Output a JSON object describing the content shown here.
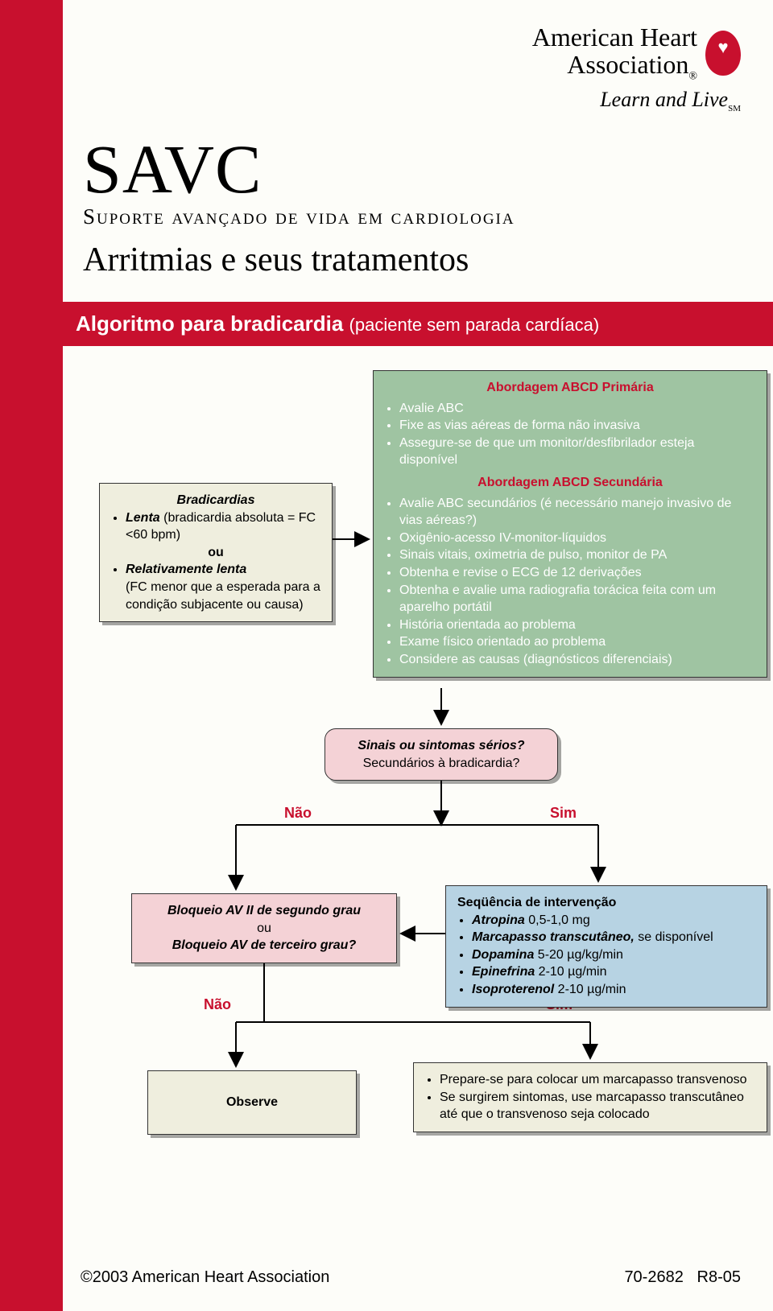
{
  "org": {
    "name_line1": "American Heart",
    "name_line2": "Association",
    "reg": "®",
    "tagline": "Learn and Live",
    "sm": "SM"
  },
  "header": {
    "title": "SAVC",
    "subtitle": "Suporte avançado de vida em cardiologia",
    "section": "Arritmias e seus tratamentos"
  },
  "algo_bar": {
    "main": "Algoritmo para bradicardia",
    "sub": "(paciente sem parada cardíaca)"
  },
  "colors": {
    "brand_red": "#c8102e",
    "bg_cream": "#efeede",
    "bg_green": "#9fc4a2",
    "bg_pink": "#f4d2d6",
    "bg_blue": "#b7d3e3",
    "page_bg": "#fdfdf9"
  },
  "flow": {
    "brad": {
      "title": "Bradicardias",
      "item1_b": "Lenta",
      "item1_rest": " (bradicardia absoluta = FC <60 bpm)",
      "ou": "ou",
      "item2_b": "Relativamente lenta",
      "item2_rest": "(FC menor que a esperada para a condição subjacente ou causa)"
    },
    "abcd": {
      "hdr1": "Abordagem ABCD Primária",
      "p_items": [
        "Avalie ABC",
        "Fixe as vias aéreas de forma não invasiva",
        "Assegure-se de que um monitor/desfibrilador esteja disponível"
      ],
      "hdr2": "Abordagem ABCD Secundária",
      "s_items": [
        "Avalie ABC secundários (é necessário manejo invasivo de vias aéreas?)",
        "Oxigênio-acesso IV-monitor-líquidos",
        "Sinais vitais, oximetria de pulso, monitor de PA",
        "Obtenha e revise o ECG de 12 derivações",
        "Obtenha e avalie uma radiografia torácica feita com um aparelho portátil",
        "História orientada ao problema",
        "Exame físico orientado ao problema",
        "Considere as causas (diagnósticos diferenciais)"
      ]
    },
    "question": {
      "l1": "Sinais ou sintomas sérios?",
      "l2": "Secundários à bradicardia?"
    },
    "labels": {
      "nao": "Não",
      "sim": "Sim"
    },
    "blockav": {
      "l1": "Bloqueio AV II de segundo grau",
      "ou": "ou",
      "l2": "Bloqueio AV de terceiro grau?"
    },
    "interv": {
      "title": "Seqüência de intervenção",
      "items": [
        {
          "b": "Atropina",
          "rest": " 0,5-1,0 mg"
        },
        {
          "b": "Marcapasso transcutâneo,",
          "rest": " se disponível"
        },
        {
          "b": "Dopamina",
          "rest": " 5-20 µg/kg/min"
        },
        {
          "b": "Epinefrina",
          "rest": " 2-10 µg/min"
        },
        {
          "b": "Isoproterenol",
          "rest": " 2-10 µg/min"
        }
      ]
    },
    "observe": "Observe",
    "prepare": {
      "items": [
        "Prepare-se para colocar um marcapasso transvenoso",
        "Se surgirem sintomas, use marcapasso transcutâneo até que o transvenoso seja colocado"
      ]
    }
  },
  "footer": {
    "copyright": "©2003 American Heart Association",
    "code1": "70-2682",
    "code2": "R8-05"
  }
}
